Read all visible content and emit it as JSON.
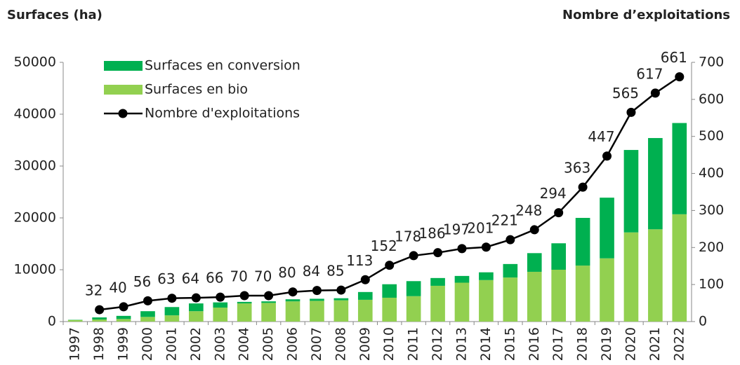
{
  "chart_data": {
    "type": "bar_line",
    "y_title": "Surfaces (ha)",
    "y2_title": "Nombre d’exploitations",
    "categories": [
      "1997",
      "1998",
      "1999",
      "2000",
      "2001",
      "2002",
      "2003",
      "2004",
      "2005",
      "2006",
      "2007",
      "2008",
      "2009",
      "2010",
      "2011",
      "2012",
      "2013",
      "2014",
      "2015",
      "2016",
      "2017",
      "2018",
      "2019",
      "2020",
      "2021",
      "2022"
    ],
    "series": [
      {
        "name": "Surfaces en conversion",
        "type": "bar",
        "color": "#00b050",
        "values": [
          50,
          400,
          600,
          1100,
          1600,
          1500,
          1000,
          300,
          300,
          400,
          400,
          400,
          1500,
          2600,
          2900,
          1500,
          1300,
          1500,
          2600,
          3600,
          5100,
          9200,
          11700,
          15900,
          17600,
          17600
        ]
      },
      {
        "name": "Surfaces en bio",
        "type": "bar",
        "color": "#92d050",
        "values": [
          300,
          400,
          500,
          900,
          1200,
          2000,
          2700,
          3500,
          3600,
          3900,
          4000,
          4100,
          4200,
          4600,
          4900,
          6900,
          7500,
          8000,
          8500,
          9600,
          10000,
          10800,
          12200,
          17200,
          17800,
          20700
        ]
      },
      {
        "name": "Nombre d'exploitations",
        "type": "line",
        "axis": "y2",
        "color": "#000000",
        "values": [
          null,
          32,
          40,
          56,
          63,
          64,
          66,
          70,
          70,
          80,
          84,
          85,
          113,
          152,
          178,
          186,
          197,
          201,
          221,
          248,
          294,
          363,
          447,
          565,
          617,
          661
        ]
      }
    ],
    "ylim": [
      0,
      50000
    ],
    "yticks": [
      0,
      10000,
      20000,
      30000,
      40000,
      50000
    ],
    "y2lim": [
      0,
      700
    ],
    "y2ticks": [
      0,
      100,
      200,
      300,
      400,
      500,
      600,
      700
    ],
    "legend": "top-left"
  }
}
